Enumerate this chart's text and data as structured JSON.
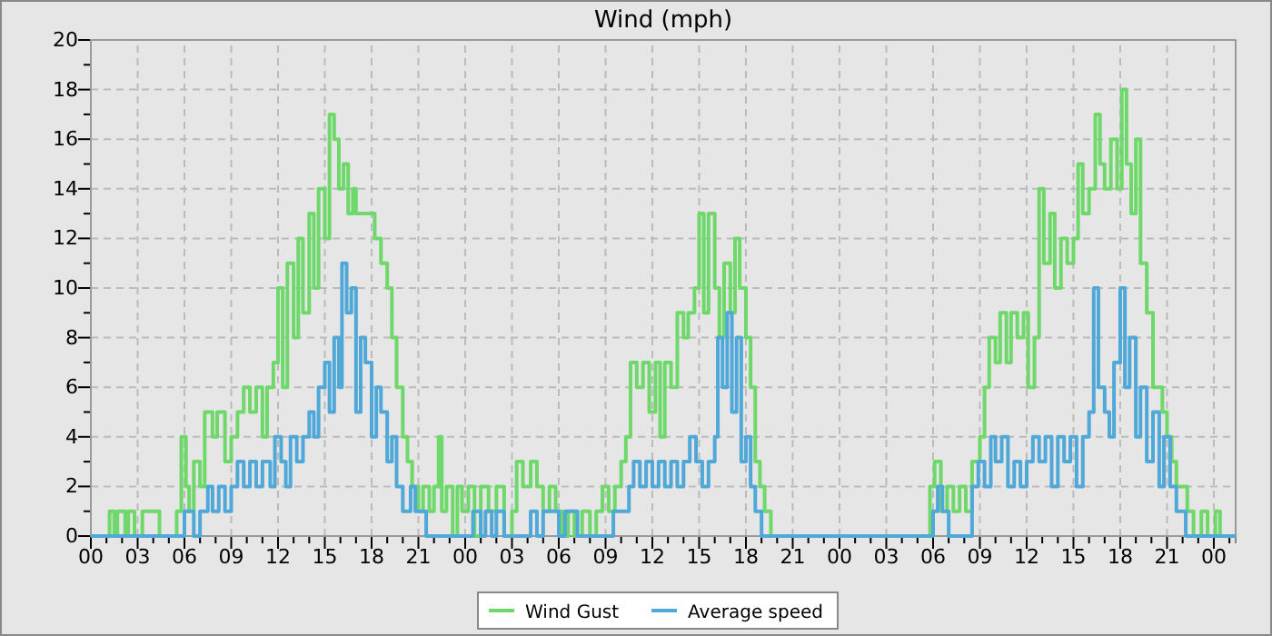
{
  "chart_data": {
    "type": "step",
    "title": "Wind (mph)",
    "xlim": [
      0,
      73.4
    ],
    "ylim": [
      0,
      20
    ],
    "yticks": [
      0,
      {
        "value": 1,
        "label": null
      },
      2,
      {
        "value": 3,
        "label": null
      },
      4,
      {
        "value": 5,
        "label": null
      },
      6,
      {
        "value": 7,
        "label": null
      },
      8,
      {
        "value": 9,
        "label": null
      },
      10,
      {
        "value": 11,
        "label": null
      },
      12,
      {
        "value": 13,
        "label": null
      },
      14,
      {
        "value": 15,
        "label": null
      },
      16,
      {
        "value": 17,
        "label": null
      },
      18,
      {
        "value": 19,
        "label": null
      },
      20
    ],
    "xticks": [
      {
        "value": 0,
        "label": "00"
      },
      {
        "value": 1,
        "label": null
      },
      {
        "value": 2,
        "label": null
      },
      {
        "value": 3,
        "label": "03"
      },
      {
        "value": 4,
        "label": null
      },
      {
        "value": 5,
        "label": null
      },
      {
        "value": 6,
        "label": "06"
      },
      {
        "value": 7,
        "label": null
      },
      {
        "value": 8,
        "label": null
      },
      {
        "value": 9,
        "label": "09"
      },
      {
        "value": 10,
        "label": null
      },
      {
        "value": 11,
        "label": null
      },
      {
        "value": 12,
        "label": "12"
      },
      {
        "value": 13,
        "label": null
      },
      {
        "value": 14,
        "label": null
      },
      {
        "value": 15,
        "label": "15"
      },
      {
        "value": 16,
        "label": null
      },
      {
        "value": 17,
        "label": null
      },
      {
        "value": 18,
        "label": "18"
      },
      {
        "value": 19,
        "label": null
      },
      {
        "value": 20,
        "label": null
      },
      {
        "value": 21,
        "label": "21"
      },
      {
        "value": 22,
        "label": null
      },
      {
        "value": 23,
        "label": null
      },
      {
        "value": 24,
        "label": "00"
      },
      {
        "value": 25,
        "label": null
      },
      {
        "value": 26,
        "label": null
      },
      {
        "value": 27,
        "label": "03"
      },
      {
        "value": 28,
        "label": null
      },
      {
        "value": 29,
        "label": null
      },
      {
        "value": 30,
        "label": "06"
      },
      {
        "value": 31,
        "label": null
      },
      {
        "value": 32,
        "label": null
      },
      {
        "value": 33,
        "label": "09"
      },
      {
        "value": 34,
        "label": null
      },
      {
        "value": 35,
        "label": null
      },
      {
        "value": 36,
        "label": "12"
      },
      {
        "value": 37,
        "label": null
      },
      {
        "value": 38,
        "label": null
      },
      {
        "value": 39,
        "label": "15"
      },
      {
        "value": 40,
        "label": null
      },
      {
        "value": 41,
        "label": null
      },
      {
        "value": 42,
        "label": "18"
      },
      {
        "value": 43,
        "label": null
      },
      {
        "value": 44,
        "label": null
      },
      {
        "value": 45,
        "label": "21"
      },
      {
        "value": 46,
        "label": null
      },
      {
        "value": 47,
        "label": null
      },
      {
        "value": 48,
        "label": "00"
      },
      {
        "value": 49,
        "label": null
      },
      {
        "value": 50,
        "label": null
      },
      {
        "value": 51,
        "label": "03"
      },
      {
        "value": 52,
        "label": null
      },
      {
        "value": 53,
        "label": null
      },
      {
        "value": 54,
        "label": "06"
      },
      {
        "value": 55,
        "label": null
      },
      {
        "value": 56,
        "label": null
      },
      {
        "value": 57,
        "label": "09"
      },
      {
        "value": 58,
        "label": null
      },
      {
        "value": 59,
        "label": null
      },
      {
        "value": 60,
        "label": "12"
      },
      {
        "value": 61,
        "label": null
      },
      {
        "value": 62,
        "label": null
      },
      {
        "value": 63,
        "label": "15"
      },
      {
        "value": 64,
        "label": null
      },
      {
        "value": 65,
        "label": null
      },
      {
        "value": 66,
        "label": "18"
      },
      {
        "value": 67,
        "label": null
      },
      {
        "value": 68,
        "label": null
      },
      {
        "value": 69,
        "label": "21"
      },
      {
        "value": 70,
        "label": null
      },
      {
        "value": 71,
        "label": null
      },
      {
        "value": 72,
        "label": "00"
      },
      {
        "value": 73,
        "label": null
      }
    ],
    "grid": true,
    "legend": "bottom",
    "line_style": "solid",
    "marker": "none",
    "series": [
      {
        "name": "Wind Gust",
        "color": "#6fd86a",
        "x": [
          0,
          1.2,
          1.5,
          1.7,
          2.2,
          2.4,
          2.8,
          3.3,
          4.4,
          5.5,
          5.8,
          6.1,
          6.3,
          6.6,
          7,
          7.3,
          7.8,
          8.1,
          8.6,
          9,
          9.4,
          9.8,
          10.2,
          10.6,
          11,
          11.3,
          11.7,
          12,
          12.3,
          12.6,
          13,
          13.3,
          13.6,
          14,
          14.3,
          14.6,
          15,
          15.3,
          15.6,
          15.9,
          16.2,
          16.5,
          16.8,
          17,
          18.2,
          18.6,
          19,
          19.3,
          19.6,
          20,
          20.3,
          20.6,
          21,
          21.3,
          21.7,
          22,
          22.3,
          22.5,
          22.8,
          23.2,
          23.5,
          23.8,
          24.2,
          24.6,
          25,
          25.5,
          26,
          26.5,
          27,
          27.3,
          27.7,
          28.2,
          28.6,
          29,
          29.4,
          29.8,
          30.2,
          30.6,
          31,
          31.5,
          32,
          32.4,
          32.8,
          33.2,
          33.6,
          34,
          34.3,
          34.6,
          35,
          35.4,
          35.8,
          36.2,
          36.5,
          36.8,
          37.2,
          37.6,
          38,
          38.3,
          38.7,
          39,
          39.3,
          39.6,
          40,
          40.3,
          40.6,
          41,
          41.3,
          41.6,
          42,
          42.3,
          42.6,
          42.9,
          43.2,
          43.6,
          53.8,
          54.1,
          54.5,
          54.9,
          55.3,
          55.7,
          56.1,
          56.5,
          57,
          57.3,
          57.6,
          58,
          58.3,
          58.7,
          59,
          59.4,
          59.8,
          60.1,
          60.5,
          60.8,
          61.1,
          61.5,
          61.8,
          62.2,
          62.6,
          63,
          63.3,
          63.6,
          64,
          64.4,
          64.7,
          65,
          65.4,
          65.8,
          66.1,
          66.4,
          66.7,
          67,
          67.3,
          67.7,
          68.1,
          68.7,
          69,
          69.3,
          69.6,
          70.3,
          70.7,
          71.2,
          71.6,
          72.1,
          72.4,
          73.4
        ],
        "values": [
          0,
          1,
          0,
          1,
          0,
          1,
          0,
          1,
          0,
          1,
          4,
          2,
          1,
          3,
          2,
          5,
          4,
          5,
          3,
          4,
          5,
          6,
          5,
          6,
          4,
          6,
          7,
          10,
          6,
          11,
          8,
          12,
          9,
          13,
          10,
          14,
          12,
          17,
          16,
          14,
          15,
          13,
          14,
          13,
          12,
          11,
          10,
          8,
          6,
          4,
          3,
          2,
          1,
          2,
          1,
          2,
          4,
          1,
          2,
          0,
          2,
          1,
          2,
          0,
          2,
          1,
          2,
          0,
          1,
          3,
          2,
          3,
          2,
          1,
          2,
          1,
          0,
          1,
          0,
          1,
          0,
          1,
          2,
          1,
          2,
          3,
          4,
          7,
          6,
          7,
          5,
          7,
          4,
          7,
          6,
          9,
          8,
          9,
          10,
          13,
          9,
          13,
          10,
          8,
          11,
          9,
          12,
          10,
          8,
          6,
          3,
          2,
          1,
          0,
          2,
          3,
          1,
          2,
          1,
          2,
          1,
          3,
          4,
          6,
          8,
          7,
          9,
          7,
          9,
          8,
          9,
          6,
          8,
          14,
          11,
          13,
          10,
          12,
          11,
          12,
          15,
          13,
          14,
          17,
          15,
          14,
          16,
          14,
          18,
          15,
          13,
          16,
          11,
          9,
          6,
          5,
          4,
          3,
          2,
          1,
          0,
          1,
          0,
          1,
          0,
          0
        ]
      },
      {
        "name": "Average speed",
        "color": "#4fa8d8",
        "x": [
          0,
          6,
          6.6,
          7,
          7.5,
          7.8,
          8.2,
          8.6,
          9,
          9.4,
          9.8,
          10.2,
          10.6,
          11,
          11.5,
          11.8,
          12.2,
          12.5,
          12.8,
          13.2,
          13.6,
          14,
          14.3,
          14.6,
          15,
          15.3,
          15.6,
          15.9,
          16.1,
          16.4,
          16.7,
          17,
          17.3,
          17.6,
          18,
          18.3,
          18.6,
          19,
          19.3,
          19.6,
          20,
          20.5,
          20.8,
          21.5,
          24.5,
          25,
          25.3,
          25.7,
          26,
          26.5,
          28.2,
          28.6,
          29,
          30,
          30.4,
          31.2,
          33.5,
          34.5,
          34.8,
          35.2,
          35.6,
          36,
          36.4,
          36.8,
          37.2,
          37.6,
          38,
          38.4,
          38.8,
          39.2,
          39.6,
          40,
          40.2,
          40.5,
          40.8,
          41.1,
          41.4,
          41.7,
          42,
          42.3,
          42.6,
          43,
          54,
          54.3,
          54.6,
          55,
          56.5,
          56.9,
          57.3,
          57.7,
          58,
          58.4,
          58.8,
          59.2,
          59.6,
          60,
          60.4,
          60.8,
          61.2,
          61.6,
          62,
          62.4,
          62.8,
          63.2,
          63.6,
          64,
          64.3,
          64.6,
          65,
          65.3,
          65.6,
          66,
          66.3,
          66.6,
          67,
          67.3,
          67.7,
          68.1,
          68.5,
          68.8,
          69.2,
          69.6,
          70.2,
          73.4
        ],
        "values": [
          0,
          1,
          0,
          1,
          2,
          1,
          2,
          1,
          2,
          3,
          2,
          3,
          2,
          3,
          2,
          4,
          3,
          2,
          4,
          3,
          4,
          5,
          4,
          6,
          7,
          5,
          8,
          6,
          11,
          9,
          10,
          5,
          8,
          7,
          4,
          6,
          5,
          3,
          4,
          2,
          1,
          2,
          1,
          0,
          1,
          0,
          1,
          0,
          1,
          0,
          1,
          0,
          1,
          0,
          1,
          0,
          1,
          2,
          3,
          2,
          3,
          2,
          3,
          2,
          3,
          2,
          3,
          4,
          3,
          2,
          3,
          4,
          8,
          6,
          9,
          5,
          8,
          3,
          4,
          2,
          1,
          0,
          1,
          2,
          1,
          0,
          2,
          3,
          2,
          4,
          3,
          4,
          2,
          3,
          2,
          3,
          4,
          3,
          4,
          2,
          4,
          3,
          4,
          2,
          4,
          5,
          10,
          6,
          5,
          4,
          7,
          10,
          6,
          8,
          4,
          6,
          3,
          5,
          2,
          4,
          2,
          1,
          0,
          0
        ]
      }
    ]
  }
}
